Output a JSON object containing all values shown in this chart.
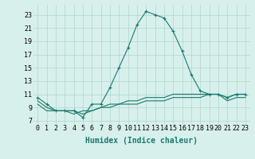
{
  "x": [
    0,
    1,
    2,
    3,
    4,
    5,
    6,
    7,
    8,
    9,
    10,
    11,
    12,
    13,
    14,
    15,
    16,
    17,
    18,
    19,
    20,
    21,
    22,
    23
  ],
  "line1": [
    10.5,
    9.5,
    8.5,
    8.5,
    8.5,
    7.5,
    9.5,
    9.5,
    12.0,
    15.0,
    18.0,
    21.5,
    23.5,
    23.0,
    22.5,
    20.5,
    17.5,
    14.0,
    11.5,
    11.0,
    11.0,
    10.5,
    11.0,
    11.0
  ],
  "line2": [
    9.5,
    8.5,
    8.5,
    8.5,
    8.0,
    8.5,
    8.5,
    9.0,
    9.0,
    9.5,
    9.5,
    9.5,
    10.0,
    10.0,
    10.0,
    10.5,
    10.5,
    10.5,
    10.5,
    11.0,
    11.0,
    10.0,
    10.5,
    10.5
  ],
  "line3": [
    10.0,
    9.0,
    8.5,
    8.5,
    8.5,
    8.0,
    8.5,
    9.0,
    9.5,
    9.5,
    10.0,
    10.0,
    10.5,
    10.5,
    10.5,
    11.0,
    11.0,
    11.0,
    11.0,
    11.0,
    11.0,
    10.5,
    11.0,
    11.0
  ],
  "line_color": "#1a7a6e",
  "bg_color": "#d8f0ec",
  "grid_color": "#aed4ce",
  "xlabel": "Humidex (Indice chaleur)",
  "yticks": [
    7,
    9,
    11,
    13,
    15,
    17,
    19,
    21,
    23
  ],
  "xticks": [
    0,
    1,
    2,
    3,
    4,
    5,
    6,
    7,
    8,
    9,
    10,
    11,
    12,
    13,
    14,
    15,
    16,
    17,
    18,
    19,
    20,
    21,
    22,
    23
  ],
  "xlim": [
    -0.5,
    23.5
  ],
  "ylim": [
    6.5,
    24.5
  ],
  "xlabel_fontsize": 7,
  "tick_fontsize": 6
}
